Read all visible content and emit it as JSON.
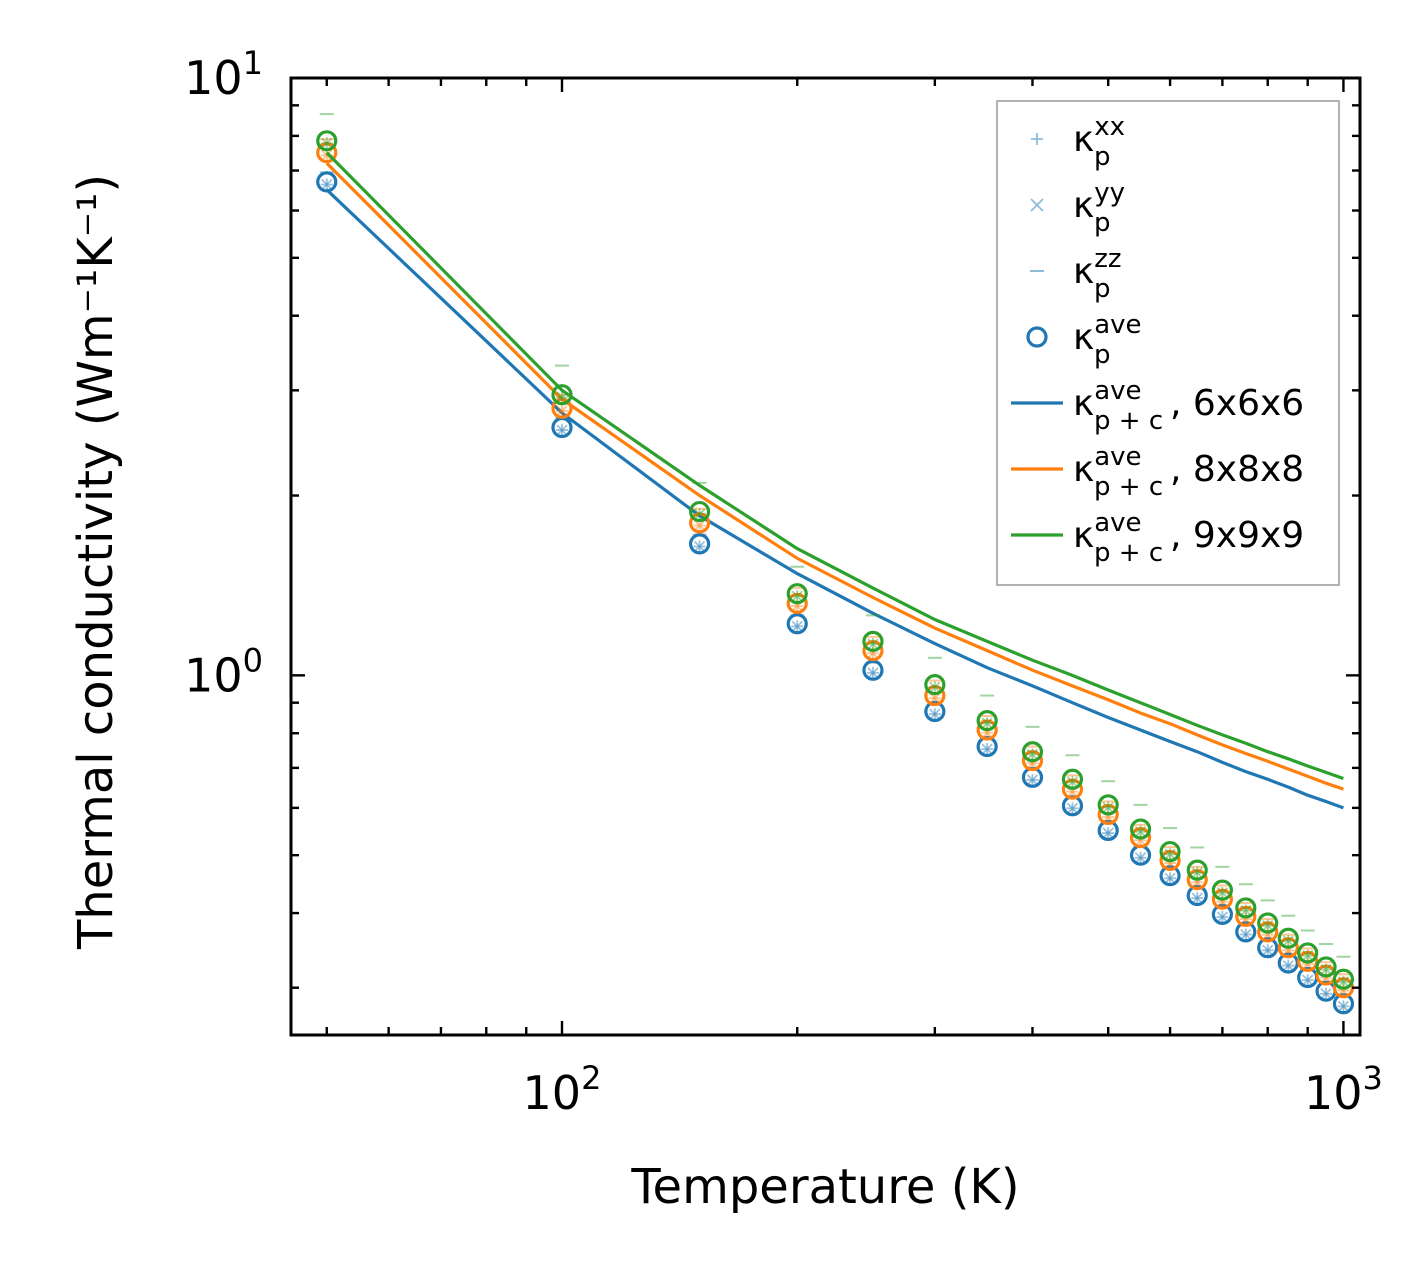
{
  "chart_data": {
    "type": "scatter",
    "xscale": "log",
    "yscale": "log",
    "xlabel": "Temperature (K)",
    "ylabel": "Thermal conductivity (Wm⁻¹K⁻¹)",
    "xlim": [
      45,
      1050
    ],
    "ylim": [
      0.25,
      10
    ],
    "x_ticks": [
      {
        "value": 100,
        "base": "10",
        "exp": "2"
      },
      {
        "value": 1000,
        "base": "10",
        "exp": "3"
      }
    ],
    "y_ticks": [
      {
        "value": 1,
        "base": "10",
        "exp": "0"
      },
      {
        "value": 10,
        "base": "10",
        "exp": "1"
      }
    ],
    "x": [
      50,
      100,
      150,
      200,
      250,
      300,
      350,
      400,
      450,
      500,
      550,
      600,
      650,
      700,
      750,
      800,
      850,
      900,
      950,
      1000
    ],
    "colors": {
      "c6": "#1f77b4",
      "c8": "#ff7f0e",
      "c9": "#2ca02c"
    },
    "series": [
      {
        "name": "6x6x6",
        "color": "#1f77b4",
        "points_ave": [
          6.7,
          2.6,
          1.66,
          1.22,
          1.02,
          0.87,
          0.76,
          0.675,
          0.605,
          0.55,
          0.5,
          0.462,
          0.428,
          0.398,
          0.372,
          0.35,
          0.33,
          0.312,
          0.296,
          0.282
        ],
        "points_zz": [
          6.95,
          2.7,
          1.72,
          1.26,
          1.05,
          0.9,
          0.785,
          0.695,
          0.625,
          0.567,
          0.516,
          0.476,
          0.441,
          0.41,
          0.384,
          0.361,
          0.34,
          0.322,
          0.305,
          0.29
        ],
        "line_ave": [
          6.5,
          2.75,
          1.85,
          1.48,
          1.27,
          1.13,
          1.03,
          0.96,
          0.9,
          0.85,
          0.81,
          0.775,
          0.745,
          0.715,
          0.69,
          0.67,
          0.65,
          0.63,
          0.615,
          0.6
        ]
      },
      {
        "name": "8x8x8",
        "color": "#ff7f0e",
        "points_ave": [
          7.5,
          2.8,
          1.8,
          1.32,
          1.1,
          0.925,
          0.81,
          0.72,
          0.645,
          0.585,
          0.535,
          0.49,
          0.455,
          0.422,
          0.395,
          0.372,
          0.35,
          0.332,
          0.315,
          0.3
        ],
        "points_zz": [
          7.9,
          2.95,
          1.9,
          1.4,
          1.16,
          0.98,
          0.855,
          0.76,
          0.68,
          0.615,
          0.562,
          0.516,
          0.478,
          0.445,
          0.416,
          0.391,
          0.368,
          0.349,
          0.331,
          0.316
        ],
        "line_ave": [
          7.2,
          2.9,
          2.0,
          1.57,
          1.35,
          1.2,
          1.1,
          1.02,
          0.96,
          0.91,
          0.865,
          0.83,
          0.795,
          0.765,
          0.74,
          0.718,
          0.697,
          0.678,
          0.66,
          0.645
        ]
      },
      {
        "name": "9x9x9",
        "color": "#2ca02c",
        "points_ave": [
          7.85,
          2.95,
          1.88,
          1.37,
          1.14,
          0.965,
          0.84,
          0.745,
          0.67,
          0.607,
          0.553,
          0.507,
          0.472,
          0.437,
          0.408,
          0.385,
          0.363,
          0.343,
          0.325,
          0.31
        ],
        "points_zz": [
          8.7,
          3.3,
          2.1,
          1.52,
          1.26,
          1.07,
          0.925,
          0.82,
          0.735,
          0.665,
          0.607,
          0.555,
          0.515,
          0.478,
          0.447,
          0.42,
          0.396,
          0.374,
          0.355,
          0.338
        ],
        "line_ave": [
          7.5,
          3.0,
          2.08,
          1.63,
          1.4,
          1.24,
          1.14,
          1.06,
          1.0,
          0.945,
          0.9,
          0.86,
          0.825,
          0.795,
          0.77,
          0.745,
          0.725,
          0.705,
          0.688,
          0.672
        ]
      }
    ],
    "legend": {
      "placement": "top-right",
      "entries": [
        {
          "marker": "+",
          "base": "κ",
          "sub": "p",
          "sup": "xx",
          "suffix": ""
        },
        {
          "marker": "x",
          "base": "κ",
          "sub": "p",
          "sup": "yy",
          "suffix": ""
        },
        {
          "marker": "_",
          "base": "κ",
          "sub": "p",
          "sup": "zz",
          "suffix": ""
        },
        {
          "marker": "o",
          "base": "κ",
          "sub": "p",
          "sup": "ave",
          "suffix": ""
        },
        {
          "marker": "line6",
          "base": "κ",
          "sub": "p + c",
          "sup": "ave",
          "suffix": ", 6x6x6"
        },
        {
          "marker": "line8",
          "base": "κ",
          "sub": "p + c",
          "sup": "ave",
          "suffix": ", 8x8x8"
        },
        {
          "marker": "line9",
          "base": "κ",
          "sub": "p + c",
          "sup": "ave",
          "suffix": ", 9x9x9"
        }
      ]
    }
  }
}
